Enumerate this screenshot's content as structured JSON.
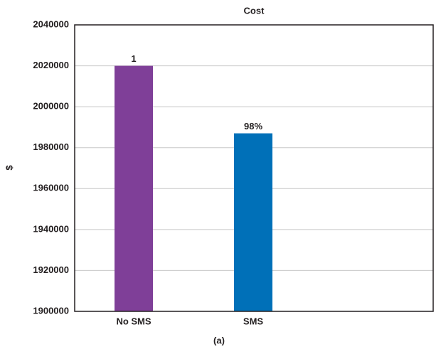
{
  "chart_data": {
    "type": "bar",
    "title": "Cost",
    "y_label": "$",
    "caption": "(a)",
    "categories": [
      "No SMS",
      "SMS",
      null
    ],
    "values": [
      2020000,
      1987000,
      null
    ],
    "value_labels": [
      "1",
      "98%",
      null
    ],
    "colors": [
      "#7f3f98",
      "#0070b8"
    ],
    "ylim": [
      1900000,
      2040000
    ],
    "yticks": [
      1900000,
      1920000,
      1940000,
      1960000,
      1980000,
      2000000,
      2020000,
      2040000
    ],
    "grid": true
  }
}
